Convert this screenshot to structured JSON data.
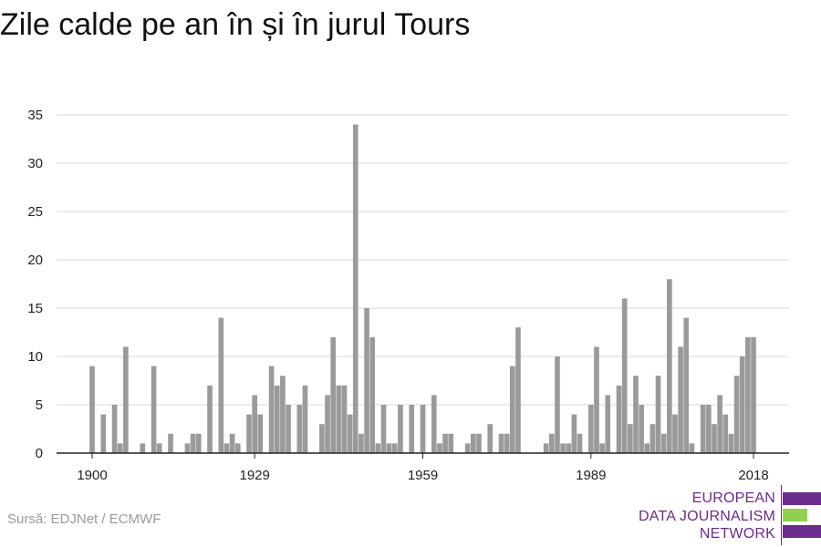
{
  "title": "Zile calde pe an în și în jurul Tours",
  "source": "Sursă: EDJNet / ECMWF",
  "logo": {
    "lines": [
      "EUROPEAN",
      "DATA JOURNALISM",
      "NETWORK"
    ],
    "colors": [
      "#6a2b8f",
      "#8fd14f",
      "#6a2b8f"
    ]
  },
  "chart_data": {
    "type": "bar",
    "title": "Zile calde pe an în și în jurul Tours",
    "xlabel": "",
    "ylabel": "",
    "ylim": [
      0,
      35
    ],
    "yticks": [
      0,
      5,
      10,
      15,
      20,
      25,
      30,
      35
    ],
    "xticks": [
      1900,
      1929,
      1959,
      1989,
      2018
    ],
    "grid": true,
    "bar_color": "#9a9a9a",
    "x": [
      1900,
      1901,
      1902,
      1903,
      1904,
      1905,
      1906,
      1907,
      1908,
      1909,
      1910,
      1911,
      1912,
      1913,
      1914,
      1915,
      1916,
      1917,
      1918,
      1919,
      1920,
      1921,
      1922,
      1923,
      1924,
      1925,
      1926,
      1927,
      1928,
      1929,
      1930,
      1931,
      1932,
      1933,
      1934,
      1935,
      1936,
      1937,
      1938,
      1939,
      1940,
      1941,
      1942,
      1943,
      1944,
      1945,
      1946,
      1947,
      1948,
      1949,
      1950,
      1951,
      1952,
      1953,
      1954,
      1955,
      1956,
      1957,
      1958,
      1959,
      1960,
      1961,
      1962,
      1963,
      1964,
      1965,
      1966,
      1967,
      1968,
      1969,
      1970,
      1971,
      1972,
      1973,
      1974,
      1975,
      1976,
      1977,
      1978,
      1979,
      1980,
      1981,
      1982,
      1983,
      1984,
      1985,
      1986,
      1987,
      1988,
      1989,
      1990,
      1991,
      1992,
      1993,
      1994,
      1995,
      1996,
      1997,
      1998,
      1999,
      2000,
      2001,
      2002,
      2003,
      2004,
      2005,
      2006,
      2007,
      2008,
      2009,
      2010,
      2011,
      2012,
      2013,
      2014,
      2015,
      2016,
      2017,
      2018,
      2019
    ],
    "values": [
      9,
      0,
      4,
      0,
      5,
      1,
      11,
      0,
      0,
      1,
      0,
      9,
      1,
      0,
      2,
      0,
      0,
      1,
      2,
      2,
      0,
      7,
      0,
      14,
      1,
      2,
      1,
      0,
      4,
      6,
      4,
      0,
      9,
      7,
      8,
      5,
      0,
      5,
      7,
      0,
      0,
      3,
      6,
      12,
      7,
      7,
      4,
      34,
      2,
      15,
      12,
      1,
      5,
      1,
      1,
      5,
      0,
      5,
      0,
      5,
      0,
      6,
      1,
      2,
      2,
      0,
      0,
      1,
      2,
      2,
      0,
      3,
      0,
      2,
      2,
      9,
      13,
      0,
      0,
      0,
      0,
      1,
      2,
      10,
      1,
      1,
      4,
      2,
      0,
      5,
      11,
      1,
      6,
      0,
      7,
      16,
      3,
      8,
      5,
      1,
      3,
      8,
      2,
      18,
      4,
      11,
      14,
      1,
      0,
      5,
      5,
      3,
      6,
      4,
      2,
      8,
      10,
      12,
      12,
      0
    ]
  }
}
